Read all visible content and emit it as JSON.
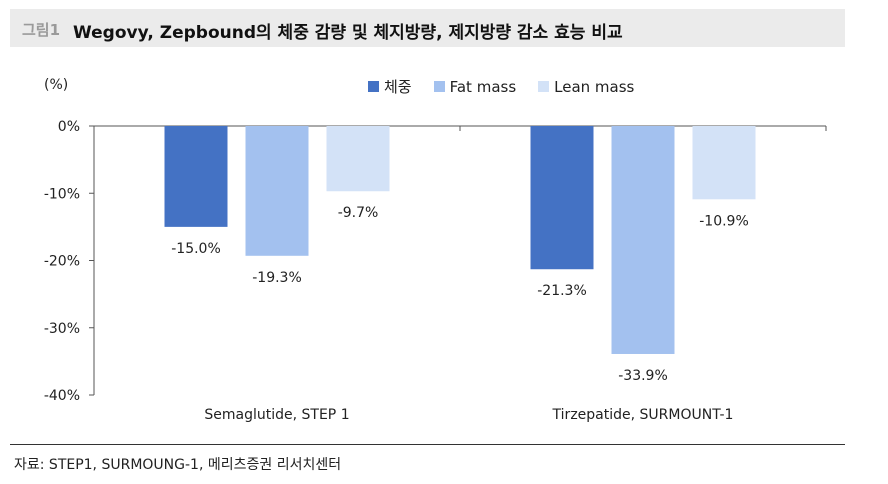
{
  "header": {
    "figure_number": "그림1",
    "title": "Wegovy, Zepbound의 체중 감량 및 체지방량, 제지방량 감소 효능 비교"
  },
  "footer": {
    "source": "자료: STEP1, SURMOUNG-1, 메리츠증권 리서치센터"
  },
  "chart_data": {
    "type": "bar",
    "unit_label": "(%)",
    "categories": [
      "Semaglutide, STEP 1",
      "Tirzepatide, SURMOUNT-1"
    ],
    "series": [
      {
        "name": "체중",
        "color": "#4472c4",
        "values": [
          -15.0,
          -21.3
        ],
        "labels": [
          "-15.0%",
          "-21.3%"
        ]
      },
      {
        "name": "Fat mass",
        "color": "#a3c1ef",
        "values": [
          -19.3,
          -33.9
        ],
        "labels": [
          "-19.3%",
          "-33.9%"
        ]
      },
      {
        "name": "Lean mass",
        "color": "#d3e2f7",
        "values": [
          -9.7,
          -10.9
        ],
        "labels": [
          "-9.7%",
          "-10.9%"
        ]
      }
    ],
    "ylim": [
      -40,
      0
    ],
    "yticks": [
      0,
      -10,
      -20,
      -30,
      -40
    ],
    "ytick_labels": [
      "0%",
      "-10%",
      "-20%",
      "-30%",
      "-40%"
    ],
    "legend_position": "top"
  }
}
